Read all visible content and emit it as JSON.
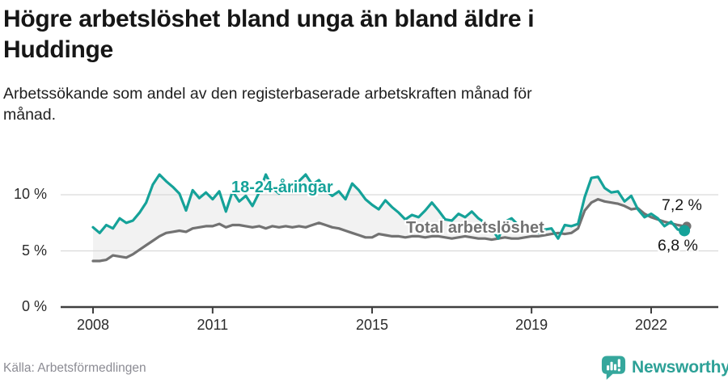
{
  "chart_data": {
    "type": "line",
    "title": "Högre arbetslöshet bland unga än bland äldre i Huddinge",
    "title_lines": [
      "Högre arbetslöshet bland unga än bland äldre i",
      "Huddinge"
    ],
    "subtitle": "Arbetssökande som andel av den registerbaserade arbetskraften månad för månad.",
    "subtitle_lines": [
      "Arbetssökande som andel av den registerbaserade arbetskraften månad för",
      "månad."
    ],
    "unit": "%",
    "grid": true,
    "area_fill_between_series": true,
    "area_fill_color": "rgba(0,0,0,0.05)",
    "grid_color": "#d9d9d9",
    "axis_color": "#3f3f3f",
    "x_axis": {
      "tick_values": [
        2008,
        2011,
        2015,
        2019,
        2022
      ],
      "tick_labels": [
        "2008",
        "2011",
        "2015",
        "2019",
        "2022"
      ]
    },
    "y_axis": {
      "tick_values": [
        0,
        5,
        10
      ],
      "tick_labels": [
        "0 %",
        "5 %",
        "10 %"
      ],
      "range": [
        0,
        12.6
      ]
    },
    "x_start": 2008.0,
    "x_step_months": 2,
    "x_end": 2022.83,
    "series": [
      {
        "name": "18-24-åringar",
        "color": "#15a299",
        "end_label": "6,8 %",
        "end_value": 6.8,
        "end_dot_r": 7,
        "values": [
          7.1,
          6.6,
          7.3,
          7.0,
          7.9,
          7.5,
          7.7,
          8.4,
          9.3,
          10.9,
          11.8,
          11.2,
          10.7,
          10.1,
          8.6,
          10.4,
          9.7,
          10.2,
          9.6,
          10.3,
          8.5,
          10.3,
          9.4,
          9.9,
          9.0,
          10.2,
          11.8,
          10.6,
          10.1,
          10.9,
          10.3,
          11.2,
          11.8,
          10.9,
          11.3,
          10.4,
          9.9,
          10.3,
          9.6,
          11.0,
          10.4,
          9.6,
          9.1,
          8.7,
          9.5,
          8.9,
          8.4,
          7.8,
          8.2,
          8.0,
          8.6,
          9.3,
          8.6,
          7.8,
          7.7,
          8.3,
          8.0,
          8.5,
          7.9,
          7.5,
          7.0,
          6.1,
          7.6,
          7.9,
          7.3,
          6.7,
          7.1,
          6.6,
          6.9,
          7.0,
          6.1,
          7.3,
          7.2,
          7.4,
          9.8,
          11.5,
          11.6,
          10.6,
          10.2,
          10.3,
          9.4,
          9.9,
          8.7,
          8.0,
          8.3,
          7.9,
          7.2,
          7.6,
          6.9,
          6.8
        ]
      },
      {
        "name": "Total arbetslöshet",
        "color": "#727272",
        "end_label": "7,2 %",
        "end_value": 7.2,
        "end_dot_r": 5.5,
        "values": [
          4.1,
          4.1,
          4.2,
          4.6,
          4.5,
          4.4,
          4.7,
          5.1,
          5.5,
          5.9,
          6.3,
          6.6,
          6.7,
          6.8,
          6.7,
          7.0,
          7.1,
          7.2,
          7.2,
          7.4,
          7.1,
          7.3,
          7.3,
          7.2,
          7.1,
          7.2,
          7.0,
          7.2,
          7.1,
          7.2,
          7.1,
          7.2,
          7.1,
          7.3,
          7.5,
          7.3,
          7.1,
          7.0,
          6.8,
          6.6,
          6.4,
          6.2,
          6.2,
          6.5,
          6.4,
          6.3,
          6.3,
          6.2,
          6.3,
          6.3,
          6.2,
          6.3,
          6.3,
          6.2,
          6.1,
          6.2,
          6.3,
          6.2,
          6.1,
          6.1,
          6.0,
          6.1,
          6.2,
          6.1,
          6.1,
          6.2,
          6.3,
          6.3,
          6.4,
          6.5,
          6.6,
          6.5,
          6.6,
          7.0,
          8.6,
          9.3,
          9.6,
          9.4,
          9.3,
          9.2,
          9.0,
          8.7,
          8.8,
          8.3,
          8.0,
          7.8,
          7.6,
          7.45,
          7.3,
          7.2
        ]
      }
    ],
    "source": "Källa: Arbetsförmedlingen"
  },
  "branding": {
    "wordmark": "Newsworthy"
  }
}
